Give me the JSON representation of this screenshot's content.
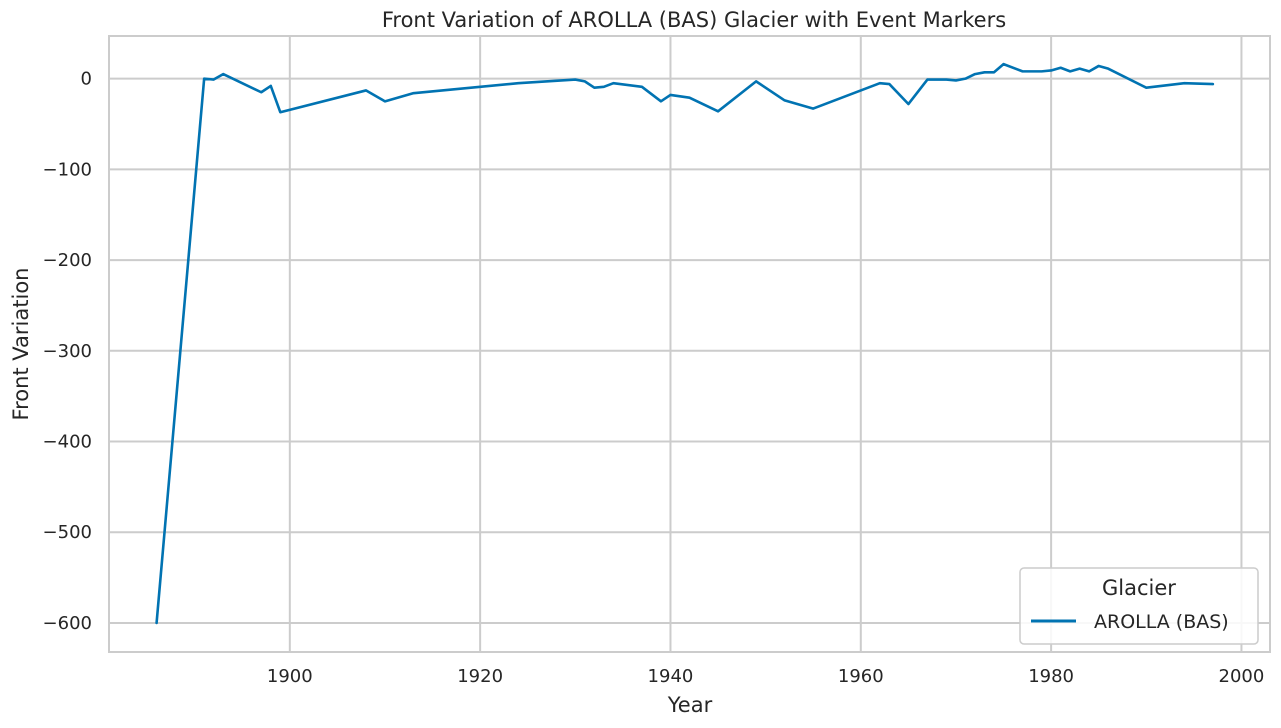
{
  "chart_data": {
    "type": "line",
    "title": "Front Variation of AROLLA (BAS) Glacier with Event Markers",
    "xlabel": "Year",
    "ylabel": "Front Variation",
    "xlim": [
      1881,
      2003
    ],
    "ylim": [
      -632,
      47
    ],
    "xticks": [
      1900,
      1920,
      1940,
      1960,
      1980,
      2000
    ],
    "yticks": [
      0,
      -100,
      -200,
      -300,
      -400,
      -500,
      -600
    ],
    "ytick_labels": [
      "0",
      "−100",
      "−200",
      "−300",
      "−400",
      "−500",
      "−600"
    ],
    "grid": true,
    "legend": {
      "title": "Glacier",
      "position": "bottom-right"
    },
    "series": [
      {
        "name": "AROLLA (BAS)",
        "color": "#0173b2",
        "x": [
          1886,
          1891,
          1892,
          1893,
          1897,
          1898,
          1899,
          1908,
          1910,
          1913,
          1924,
          1930,
          1931,
          1932,
          1933,
          1934,
          1937,
          1939,
          1940,
          1942,
          1945,
          1949,
          1952,
          1955,
          1962,
          1963,
          1965,
          1967,
          1969,
          1970,
          1971,
          1972,
          1973,
          1974,
          1975,
          1977,
          1979,
          1980,
          1981,
          1982,
          1983,
          1984,
          1985,
          1986,
          1990,
          1994,
          1997
        ],
        "y": [
          -600,
          0,
          -1,
          5,
          -15,
          -8,
          -37,
          -13,
          -25,
          -16,
          -5,
          -1,
          -3,
          -10,
          -9,
          -5,
          -9,
          -25,
          -18,
          -21,
          -36,
          -3,
          -24,
          -33,
          -5,
          -6,
          -28,
          -1,
          -1,
          -2,
          0,
          5,
          7,
          7,
          16,
          8,
          8,
          9,
          12,
          8,
          11,
          8,
          14,
          11,
          -10,
          -5,
          -6
        ]
      }
    ]
  }
}
